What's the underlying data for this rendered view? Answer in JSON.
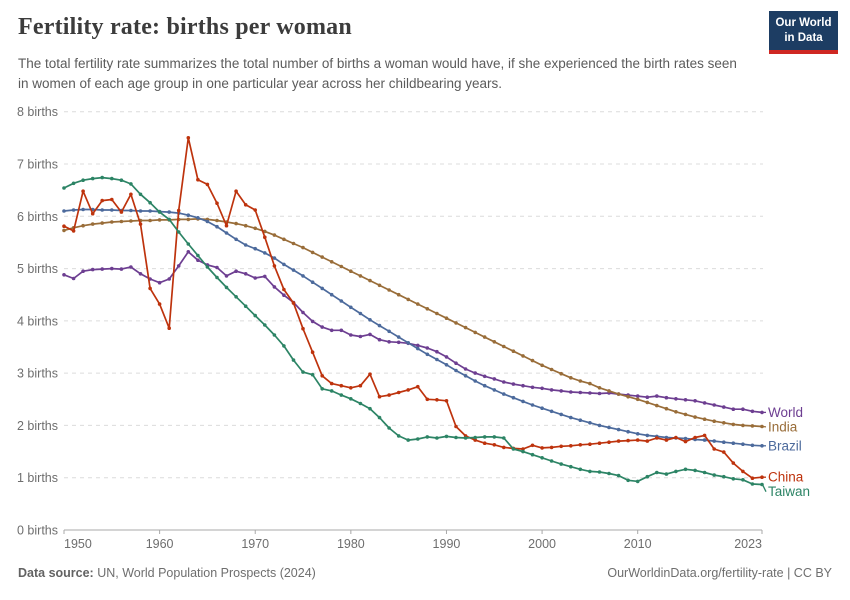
{
  "header": {
    "title": "Fertility rate: births per woman",
    "subtitle": "The total fertility rate summarizes the total number of births a woman would have, if she experienced the birth rates seen in women of each age group in one particular year across her childbearing years.",
    "logo": {
      "line1": "Our World",
      "line2": "in Data"
    }
  },
  "footer": {
    "source_label": "Data source:",
    "source_text": " UN, World Population Prospects (2024)",
    "credit_link": "OurWorldinData.org/fertility-rate",
    "credit_license": " | CC BY"
  },
  "chart_data": {
    "type": "line",
    "title": "Fertility rate: births per woman",
    "xlabel": "",
    "ylabel": "births per woman",
    "xlim": [
      1950,
      2023
    ],
    "ylim": [
      0,
      8
    ],
    "grid": "horizontal dashed",
    "legend_position": "right-edge colored labels",
    "y_ticks": [
      0,
      1,
      2,
      3,
      4,
      5,
      6,
      7,
      8
    ],
    "y_tick_labels": [
      "0 births",
      "1 births",
      "2 births",
      "3 births",
      "4 births",
      "5 births",
      "6 births",
      "7 births",
      "8 births"
    ],
    "x_ticks": [
      1950,
      1960,
      1970,
      1980,
      1990,
      2000,
      2010,
      2023
    ],
    "x_tick_labels": [
      "1950",
      "1960",
      "1970",
      "1980",
      "1990",
      "2000",
      "2010",
      "2023"
    ],
    "x": [
      1950,
      1951,
      1952,
      1953,
      1954,
      1955,
      1956,
      1957,
      1958,
      1959,
      1960,
      1961,
      1962,
      1963,
      1964,
      1965,
      1966,
      1967,
      1968,
      1969,
      1970,
      1971,
      1972,
      1973,
      1974,
      1975,
      1976,
      1977,
      1978,
      1979,
      1980,
      1981,
      1982,
      1983,
      1984,
      1985,
      1986,
      1987,
      1988,
      1989,
      1990,
      1991,
      1992,
      1993,
      1994,
      1995,
      1996,
      1997,
      1998,
      1999,
      2000,
      2001,
      2002,
      2003,
      2004,
      2005,
      2006,
      2007,
      2008,
      2009,
      2010,
      2011,
      2012,
      2013,
      2014,
      2015,
      2016,
      2017,
      2018,
      2019,
      2020,
      2021,
      2022,
      2023
    ],
    "series": [
      {
        "name": "World",
        "color": "#6D3E91",
        "values": [
          4.88,
          4.81,
          4.95,
          4.98,
          4.99,
          5.0,
          4.99,
          5.03,
          4.9,
          4.8,
          4.73,
          4.8,
          5.05,
          5.32,
          5.16,
          5.07,
          5.02,
          4.86,
          4.95,
          4.9,
          4.82,
          4.85,
          4.65,
          4.49,
          4.35,
          4.16,
          3.99,
          3.88,
          3.82,
          3.82,
          3.73,
          3.7,
          3.74,
          3.64,
          3.6,
          3.59,
          3.57,
          3.53,
          3.48,
          3.41,
          3.31,
          3.19,
          3.08,
          3.0,
          2.94,
          2.89,
          2.83,
          2.79,
          2.76,
          2.73,
          2.71,
          2.68,
          2.66,
          2.64,
          2.63,
          2.62,
          2.61,
          2.62,
          2.6,
          2.58,
          2.56,
          2.54,
          2.56,
          2.53,
          2.51,
          2.49,
          2.47,
          2.43,
          2.39,
          2.35,
          2.31,
          2.31,
          2.27,
          2.25
        ]
      },
      {
        "name": "India",
        "color": "#996D39",
        "values": [
          5.73,
          5.78,
          5.82,
          5.85,
          5.87,
          5.89,
          5.9,
          5.91,
          5.92,
          5.92,
          5.93,
          5.93,
          5.94,
          5.94,
          5.95,
          5.94,
          5.92,
          5.89,
          5.86,
          5.82,
          5.77,
          5.71,
          5.64,
          5.56,
          5.48,
          5.4,
          5.31,
          5.22,
          5.13,
          5.04,
          4.95,
          4.86,
          4.77,
          4.68,
          4.59,
          4.5,
          4.41,
          4.32,
          4.23,
          4.14,
          4.05,
          3.96,
          3.87,
          3.78,
          3.69,
          3.6,
          3.51,
          3.42,
          3.33,
          3.24,
          3.15,
          3.07,
          2.99,
          2.91,
          2.85,
          2.8,
          2.72,
          2.66,
          2.6,
          2.55,
          2.5,
          2.44,
          2.38,
          2.32,
          2.26,
          2.21,
          2.16,
          2.12,
          2.08,
          2.05,
          2.02,
          2.0,
          1.99,
          1.98
        ]
      },
      {
        "name": "Brazil",
        "color": "#4C6A9C",
        "values": [
          6.1,
          6.12,
          6.13,
          6.13,
          6.12,
          6.12,
          6.11,
          6.11,
          6.1,
          6.1,
          6.09,
          6.08,
          6.06,
          6.02,
          5.97,
          5.9,
          5.8,
          5.68,
          5.56,
          5.45,
          5.38,
          5.3,
          5.2,
          5.08,
          4.97,
          4.86,
          4.74,
          4.62,
          4.5,
          4.38,
          4.26,
          4.14,
          4.02,
          3.91,
          3.8,
          3.69,
          3.58,
          3.47,
          3.36,
          3.26,
          3.16,
          3.05,
          2.95,
          2.85,
          2.76,
          2.68,
          2.6,
          2.53,
          2.46,
          2.39,
          2.33,
          2.27,
          2.21,
          2.15,
          2.1,
          2.05,
          2.0,
          1.96,
          1.92,
          1.88,
          1.84,
          1.81,
          1.79,
          1.77,
          1.76,
          1.75,
          1.73,
          1.72,
          1.7,
          1.68,
          1.66,
          1.64,
          1.62,
          1.61
        ]
      },
      {
        "name": "China",
        "color": "#BE330D",
        "values": [
          5.81,
          5.72,
          6.48,
          6.05,
          6.3,
          6.32,
          6.08,
          6.42,
          5.85,
          4.62,
          4.32,
          3.86,
          6.11,
          7.5,
          6.7,
          6.61,
          6.25,
          5.82,
          6.48,
          6.22,
          6.12,
          5.6,
          5.05,
          4.6,
          4.34,
          3.85,
          3.4,
          2.95,
          2.8,
          2.76,
          2.72,
          2.76,
          2.98,
          2.55,
          2.58,
          2.63,
          2.68,
          2.74,
          2.5,
          2.49,
          2.47,
          1.98,
          1.8,
          1.72,
          1.66,
          1.63,
          1.58,
          1.56,
          1.55,
          1.62,
          1.57,
          1.58,
          1.6,
          1.61,
          1.63,
          1.64,
          1.66,
          1.68,
          1.7,
          1.71,
          1.72,
          1.7,
          1.76,
          1.72,
          1.77,
          1.69,
          1.77,
          1.81,
          1.55,
          1.49,
          1.28,
          1.12,
          0.99,
          1.01
        ]
      },
      {
        "name": "Taiwan",
        "color": "#2C8465",
        "values": [
          6.54,
          6.63,
          6.69,
          6.72,
          6.74,
          6.72,
          6.69,
          6.62,
          6.42,
          6.26,
          6.08,
          5.94,
          5.7,
          5.47,
          5.25,
          5.03,
          4.83,
          4.64,
          4.46,
          4.28,
          4.1,
          3.92,
          3.73,
          3.52,
          3.25,
          3.02,
          2.97,
          2.7,
          2.66,
          2.58,
          2.51,
          2.42,
          2.32,
          2.15,
          1.95,
          1.8,
          1.72,
          1.74,
          1.78,
          1.76,
          1.79,
          1.77,
          1.76,
          1.77,
          1.78,
          1.78,
          1.76,
          1.55,
          1.5,
          1.44,
          1.38,
          1.32,
          1.26,
          1.21,
          1.16,
          1.12,
          1.11,
          1.08,
          1.04,
          0.95,
          0.93,
          1.02,
          1.1,
          1.07,
          1.12,
          1.16,
          1.14,
          1.1,
          1.05,
          1.02,
          0.98,
          0.96,
          0.88,
          0.87
        ]
      }
    ]
  }
}
